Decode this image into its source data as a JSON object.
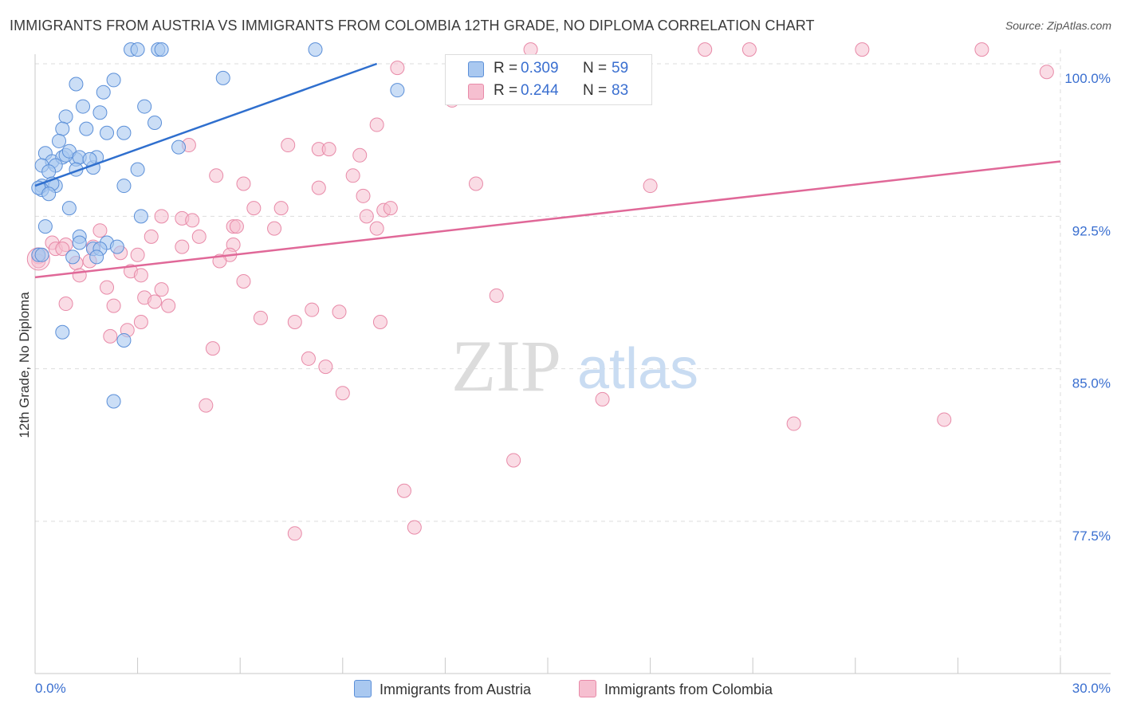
{
  "title": "IMMIGRANTS FROM AUSTRIA VS IMMIGRANTS FROM COLOMBIA 12TH GRADE, NO DIPLOMA CORRELATION CHART",
  "source": "Source: ZipAtlas.com",
  "watermark": {
    "zip": "ZIP",
    "atlas": "atlas"
  },
  "legend": {
    "austria": {
      "r_label": "R =",
      "r_value": "0.309",
      "n_label": "N =",
      "n_value": "59"
    },
    "colombia": {
      "r_label": "R =",
      "r_value": "0.244",
      "n_label": "N =",
      "n_value": "83"
    }
  },
  "colors": {
    "austria_fill": "#a9c8f0",
    "austria_stroke": "#5b8fd8",
    "austria_line": "#2f6fce",
    "colombia_fill": "#f6bfd0",
    "colombia_stroke": "#e88aa8",
    "colombia_line": "#e06898",
    "tick_label": "#3a6fd0",
    "grid": "#dddddd"
  },
  "chart_data": {
    "type": "scatter",
    "title": "IMMIGRANTS FROM AUSTRIA VS IMMIGRANTS FROM COLOMBIA 12TH GRADE, NO DIPLOMA CORRELATION CHART",
    "xlabel": "",
    "ylabel": "12th Grade, No Diploma",
    "xlim": [
      0,
      30
    ],
    "ylim": [
      71,
      101
    ],
    "x_tick_labels": [
      "0.0%",
      "30.0%"
    ],
    "y_ticks": [
      77.5,
      85.0,
      92.5,
      100.0
    ],
    "y_tick_labels": [
      "77.5%",
      "85.0%",
      "92.5%",
      "100.0%"
    ],
    "grid": true,
    "series": [
      {
        "name": "Immigrants from Austria",
        "color": "#a9c8f0",
        "points": [
          [
            2.8,
            100.7
          ],
          [
            3.0,
            100.7
          ],
          [
            3.6,
            100.7
          ],
          [
            3.7,
            100.7
          ],
          [
            8.2,
            100.7
          ],
          [
            1.2,
            99.0
          ],
          [
            2.3,
            99.2
          ],
          [
            5.5,
            99.3
          ],
          [
            10.6,
            98.7
          ],
          [
            2.0,
            98.6
          ],
          [
            1.4,
            97.9
          ],
          [
            3.2,
            97.9
          ],
          [
            1.9,
            97.6
          ],
          [
            0.9,
            97.4
          ],
          [
            0.8,
            96.8
          ],
          [
            1.5,
            96.8
          ],
          [
            2.1,
            96.6
          ],
          [
            2.6,
            96.6
          ],
          [
            0.3,
            95.6
          ],
          [
            0.5,
            95.2
          ],
          [
            0.8,
            95.4
          ],
          [
            1.2,
            95.3
          ],
          [
            0.9,
            95.5
          ],
          [
            0.6,
            95.0
          ],
          [
            1.0,
            95.7
          ],
          [
            1.3,
            95.4
          ],
          [
            1.7,
            94.9
          ],
          [
            1.8,
            95.4
          ],
          [
            0.2,
            95.0
          ],
          [
            0.4,
            94.7
          ],
          [
            1.2,
            94.8
          ],
          [
            3.0,
            94.8
          ],
          [
            2.6,
            94.0
          ],
          [
            0.6,
            94.0
          ],
          [
            0.2,
            94.0
          ],
          [
            0.5,
            94.1
          ],
          [
            0.2,
            93.8
          ],
          [
            0.1,
            93.9
          ],
          [
            3.1,
            92.5
          ],
          [
            0.3,
            92.0
          ],
          [
            1.3,
            91.5
          ],
          [
            1.3,
            91.2
          ],
          [
            2.1,
            91.2
          ],
          [
            1.7,
            90.9
          ],
          [
            1.9,
            90.9
          ],
          [
            1.8,
            90.5
          ],
          [
            1.1,
            90.5
          ],
          [
            0.1,
            90.6
          ],
          [
            0.2,
            90.6
          ],
          [
            0.8,
            86.8
          ],
          [
            2.6,
            86.4
          ],
          [
            2.3,
            83.4
          ],
          [
            1.6,
            95.3
          ],
          [
            0.4,
            93.6
          ],
          [
            1.0,
            92.9
          ],
          [
            2.4,
            91.0
          ],
          [
            3.5,
            97.1
          ],
          [
            4.2,
            95.9
          ],
          [
            0.7,
            96.2
          ]
        ]
      },
      {
        "name": "Immigrants from Colombia",
        "color": "#f6bfd0",
        "points": [
          [
            19.6,
            100.7
          ],
          [
            20.9,
            100.7
          ],
          [
            24.2,
            100.7
          ],
          [
            27.7,
            100.7
          ],
          [
            14.5,
            100.7
          ],
          [
            29.6,
            99.6
          ],
          [
            10.6,
            99.8
          ],
          [
            12.2,
            98.2
          ],
          [
            10.0,
            97.0
          ],
          [
            4.5,
            96.0
          ],
          [
            7.4,
            96.0
          ],
          [
            8.3,
            95.8
          ],
          [
            8.6,
            95.8
          ],
          [
            9.5,
            95.5
          ],
          [
            5.3,
            94.5
          ],
          [
            6.1,
            94.1
          ],
          [
            9.3,
            94.5
          ],
          [
            8.3,
            93.9
          ],
          [
            12.9,
            94.1
          ],
          [
            18.0,
            94.0
          ],
          [
            9.6,
            93.5
          ],
          [
            6.4,
            92.9
          ],
          [
            7.2,
            92.9
          ],
          [
            10.2,
            92.8
          ],
          [
            10.4,
            92.9
          ],
          [
            9.7,
            92.5
          ],
          [
            3.7,
            92.5
          ],
          [
            4.3,
            92.4
          ],
          [
            4.6,
            92.3
          ],
          [
            5.8,
            92.0
          ],
          [
            5.9,
            92.0
          ],
          [
            7.0,
            91.9
          ],
          [
            10.0,
            91.9
          ],
          [
            4.8,
            91.5
          ],
          [
            3.4,
            91.5
          ],
          [
            1.9,
            91.8
          ],
          [
            5.8,
            91.1
          ],
          [
            4.3,
            91.0
          ],
          [
            1.7,
            91.0
          ],
          [
            0.5,
            91.2
          ],
          [
            0.6,
            90.9
          ],
          [
            0.9,
            91.1
          ],
          [
            0.8,
            90.9
          ],
          [
            0.1,
            90.5
          ],
          [
            2.5,
            90.7
          ],
          [
            3.0,
            90.6
          ],
          [
            5.7,
            90.6
          ],
          [
            5.4,
            90.3
          ],
          [
            1.6,
            90.3
          ],
          [
            1.2,
            90.2
          ],
          [
            0.1,
            90.3
          ],
          [
            2.8,
            89.8
          ],
          [
            3.1,
            89.6
          ],
          [
            1.3,
            89.6
          ],
          [
            2.1,
            89.0
          ],
          [
            3.7,
            88.9
          ],
          [
            3.2,
            88.5
          ],
          [
            3.5,
            88.3
          ],
          [
            0.9,
            88.2
          ],
          [
            2.3,
            88.1
          ],
          [
            3.9,
            88.1
          ],
          [
            8.1,
            87.9
          ],
          [
            8.9,
            87.8
          ],
          [
            6.6,
            87.5
          ],
          [
            7.6,
            87.3
          ],
          [
            10.1,
            87.3
          ],
          [
            3.1,
            87.3
          ],
          [
            2.2,
            86.6
          ],
          [
            5.2,
            86.0
          ],
          [
            8.0,
            85.5
          ],
          [
            8.5,
            85.1
          ],
          [
            16.6,
            83.5
          ],
          [
            5.0,
            83.2
          ],
          [
            22.2,
            82.3
          ],
          [
            26.6,
            82.5
          ],
          [
            14.0,
            80.5
          ],
          [
            10.8,
            79.0
          ],
          [
            11.1,
            77.2
          ],
          [
            7.6,
            76.9
          ],
          [
            9.0,
            83.8
          ],
          [
            6.1,
            89.3
          ],
          [
            13.5,
            88.6
          ],
          [
            2.7,
            86.9
          ]
        ]
      }
    ],
    "trend_lines": [
      {
        "name": "Immigrants from Austria",
        "x": [
          0,
          10.0
        ],
        "y": [
          94.0,
          100.0
        ]
      },
      {
        "name": "Immigrants from Colombia",
        "x": [
          0,
          30
        ],
        "y": [
          89.5,
          95.2
        ]
      }
    ]
  },
  "bottom_legend": {
    "austria_label": "Immigrants from Austria",
    "colombia_label": "Immigrants from Colombia"
  }
}
